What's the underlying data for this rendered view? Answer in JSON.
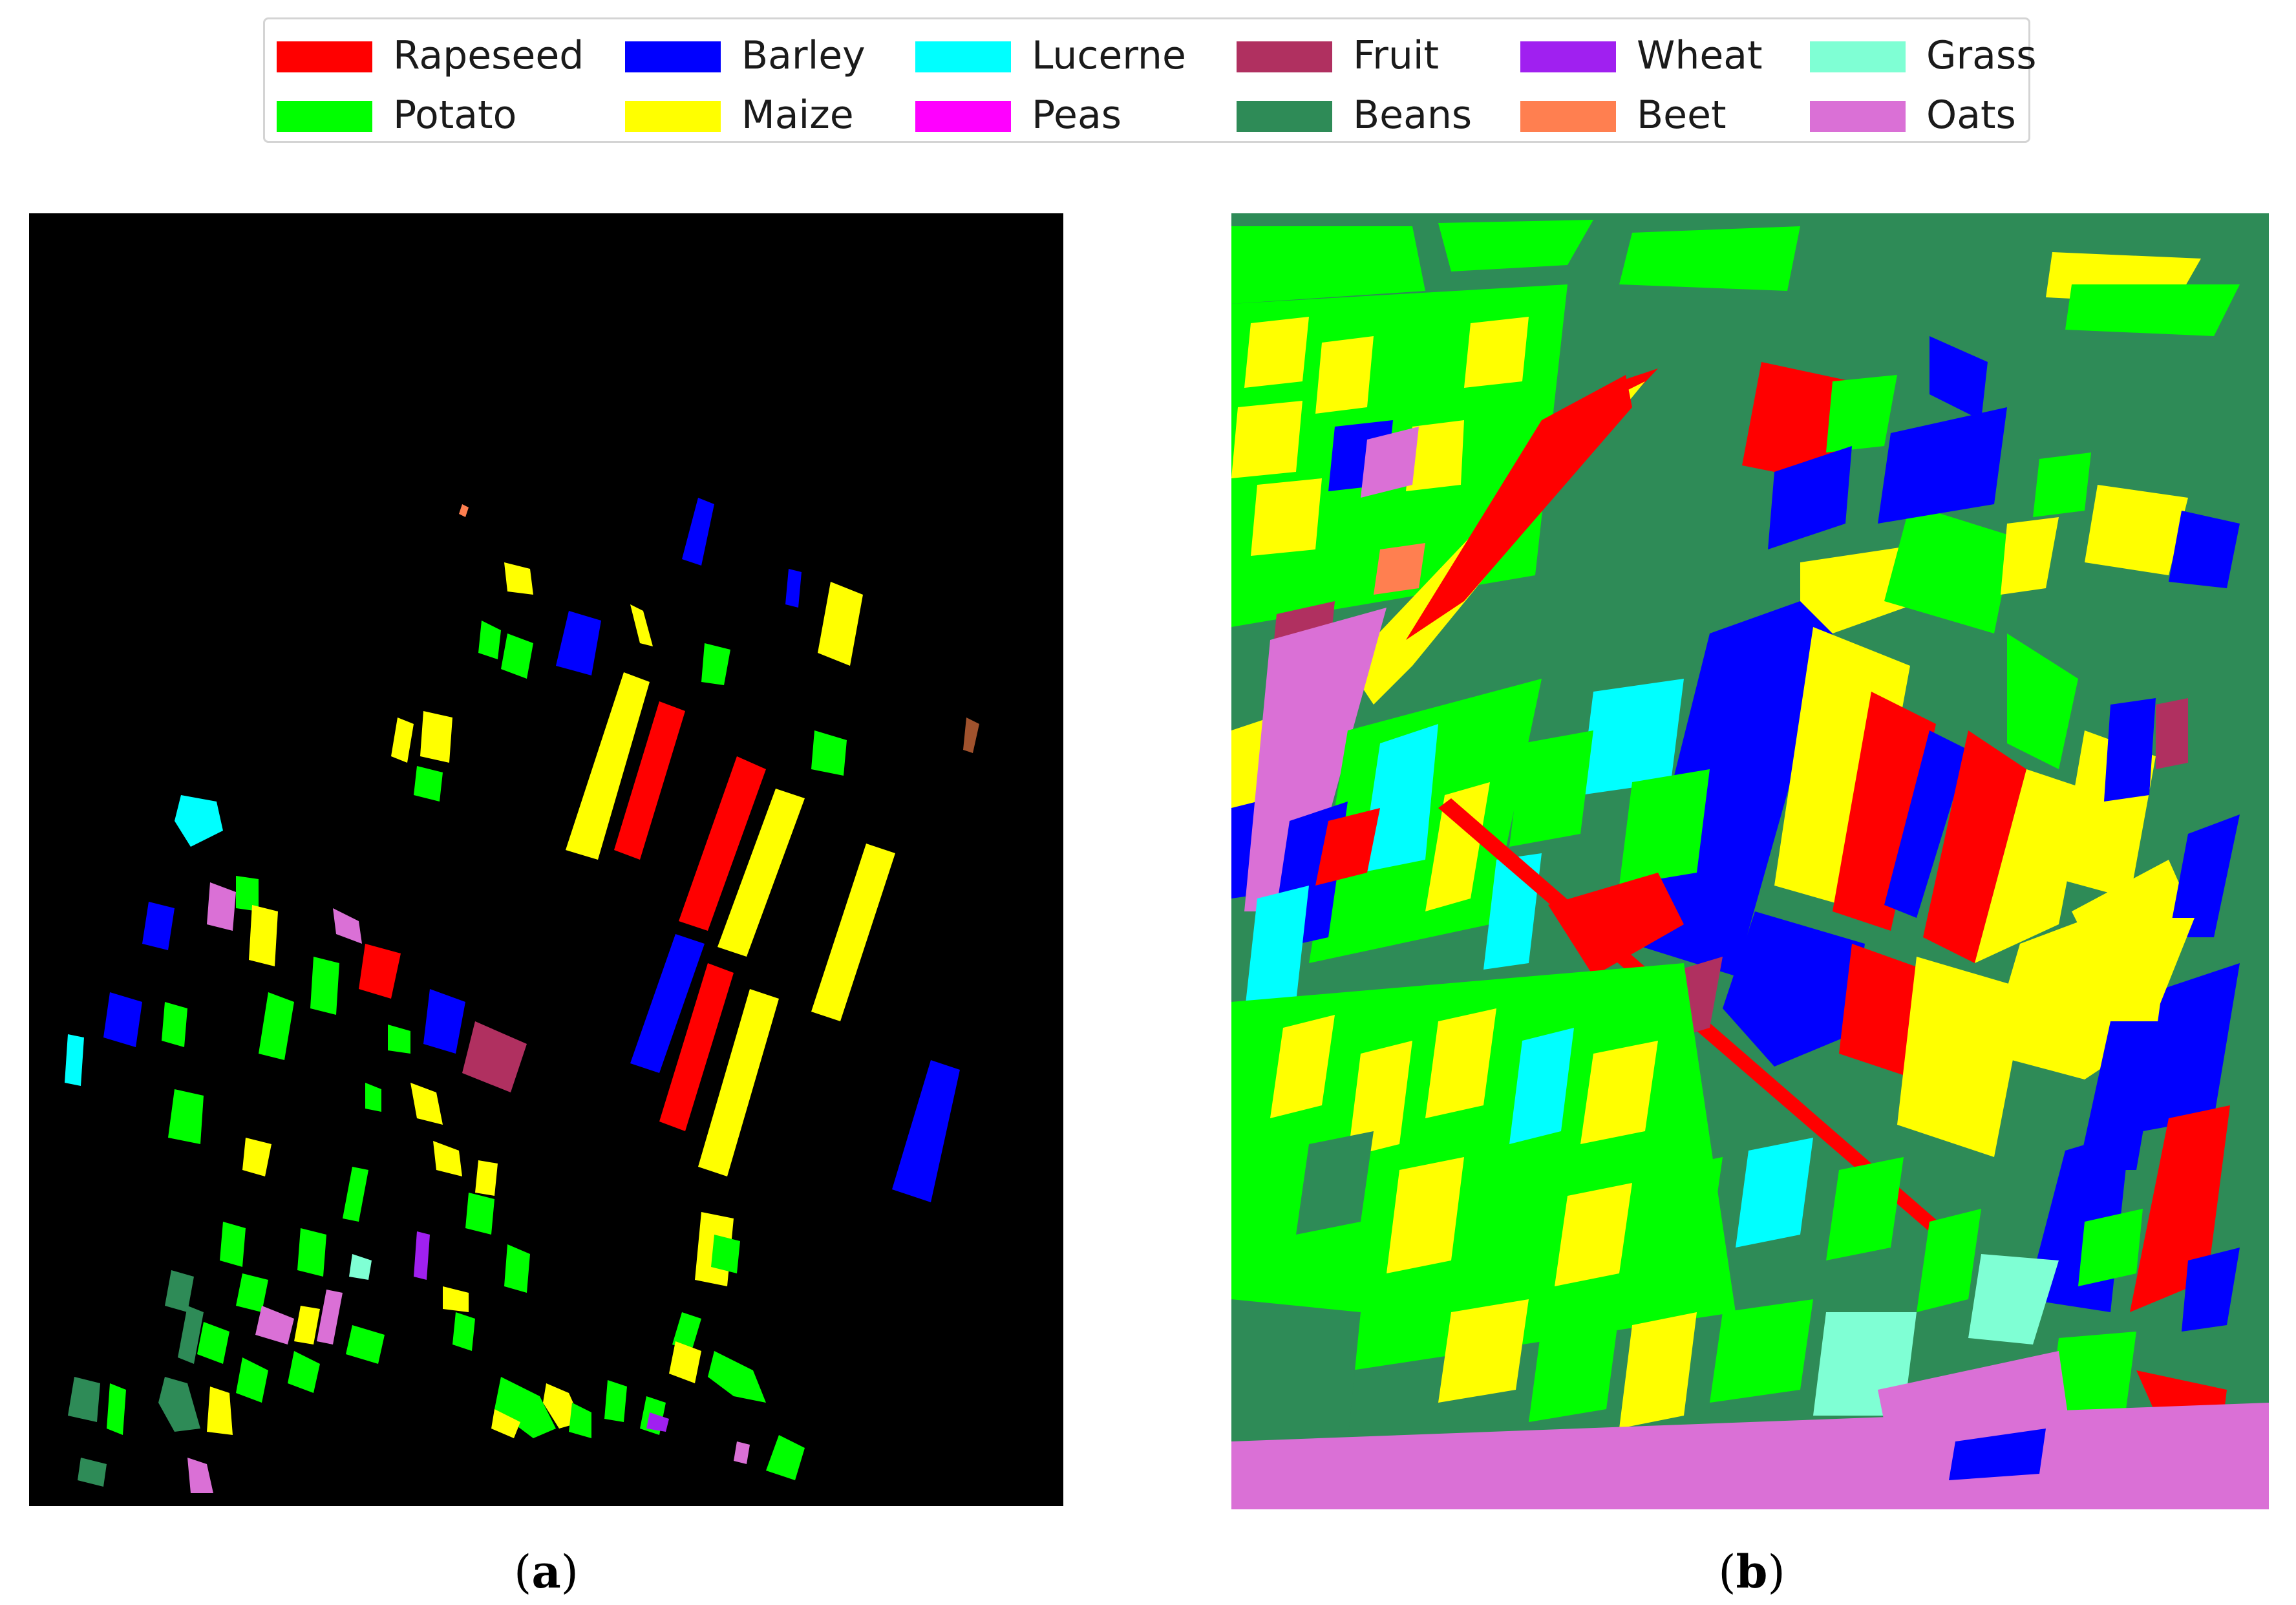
{
  "legend": {
    "items": [
      {
        "label": "Rapeseed",
        "color": "#ff0000"
      },
      {
        "label": "Barley",
        "color": "#0000ff"
      },
      {
        "label": "Lucerne",
        "color": "#00ffff"
      },
      {
        "label": "Fruit",
        "color": "#b03060"
      },
      {
        "label": "Wheat",
        "color": "#a020f0"
      },
      {
        "label": "Grass",
        "color": "#7fffd4"
      },
      {
        "label": "Potato",
        "color": "#00ff00"
      },
      {
        "label": "Maize",
        "color": "#ffff00"
      },
      {
        "label": "Peas",
        "color": "#ff00ff"
      },
      {
        "label": "Beans",
        "color": "#2e8b57"
      },
      {
        "label": "Beet",
        "color": "#ff7f50"
      },
      {
        "label": "Oats",
        "color": "#da70d6"
      }
    ]
  },
  "panels": {
    "a": {
      "caption": "a",
      "background": "#000000"
    },
    "b": {
      "caption": "b",
      "background": "#2e8b57"
    }
  }
}
